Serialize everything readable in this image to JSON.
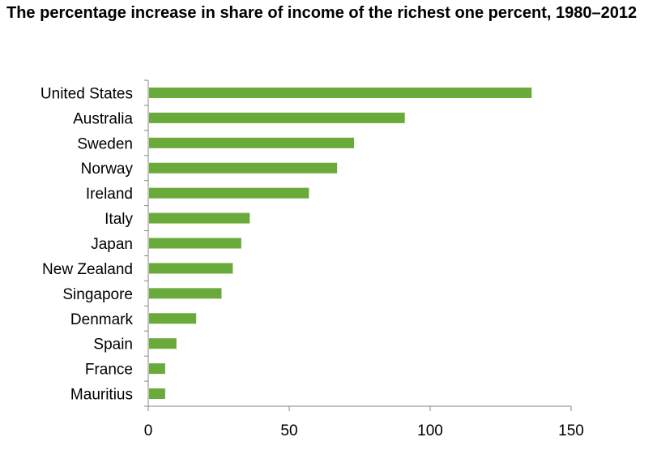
{
  "title": "The percentage increase in share of income of the richest one percent, 1980–2012",
  "chart_data": {
    "type": "bar",
    "orientation": "horizontal",
    "title": "The percentage increase in share of income of the richest one percent, 1980–2012",
    "categories": [
      "United States",
      "Australia",
      "Sweden",
      "Norway",
      "Ireland",
      "Italy",
      "Japan",
      "New Zealand",
      "Singapore",
      "Denmark",
      "Spain",
      "France",
      "Mauritius"
    ],
    "values": [
      136,
      91,
      73,
      67,
      57,
      36,
      33,
      30,
      26,
      17,
      10,
      6,
      6
    ],
    "xlim": [
      0,
      150
    ],
    "xticks": [
      0,
      50,
      100,
      150
    ],
    "bar_color": "#6aaa3a",
    "grid": false,
    "legend": "none",
    "xlabel": "",
    "ylabel": ""
  }
}
